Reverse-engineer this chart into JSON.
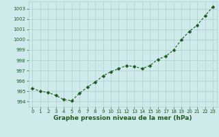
{
  "x": [
    0,
    1,
    2,
    3,
    4,
    5,
    6,
    7,
    8,
    9,
    10,
    11,
    12,
    13,
    14,
    15,
    16,
    17,
    18,
    19,
    20,
    21,
    22,
    23
  ],
  "y": [
    995.3,
    995.0,
    994.9,
    994.6,
    994.2,
    994.1,
    994.8,
    995.4,
    995.9,
    996.5,
    996.9,
    997.2,
    997.5,
    997.4,
    997.2,
    997.5,
    998.1,
    998.4,
    999.0,
    1000.0,
    1000.8,
    1001.4,
    1002.3,
    1003.2
  ],
  "line_color": "#1a5c1a",
  "marker_color": "#1a5c1a",
  "bg_color": "#ceeaea",
  "grid_color": "#b0cece",
  "xlabel": "Graphe pression niveau de la mer (hPa)",
  "ylim": [
    993.5,
    1003.7
  ],
  "xlim": [
    -0.5,
    23.5
  ],
  "yticks": [
    994,
    995,
    996,
    997,
    998,
    999,
    1000,
    1001,
    1002,
    1003
  ],
  "xticks": [
    0,
    1,
    2,
    3,
    4,
    5,
    6,
    7,
    8,
    9,
    10,
    11,
    12,
    13,
    14,
    15,
    16,
    17,
    18,
    19,
    20,
    21,
    22,
    23
  ],
  "tick_fontsize": 5.0,
  "xlabel_fontsize": 6.5,
  "line_width": 0.8,
  "marker_size": 2.5
}
